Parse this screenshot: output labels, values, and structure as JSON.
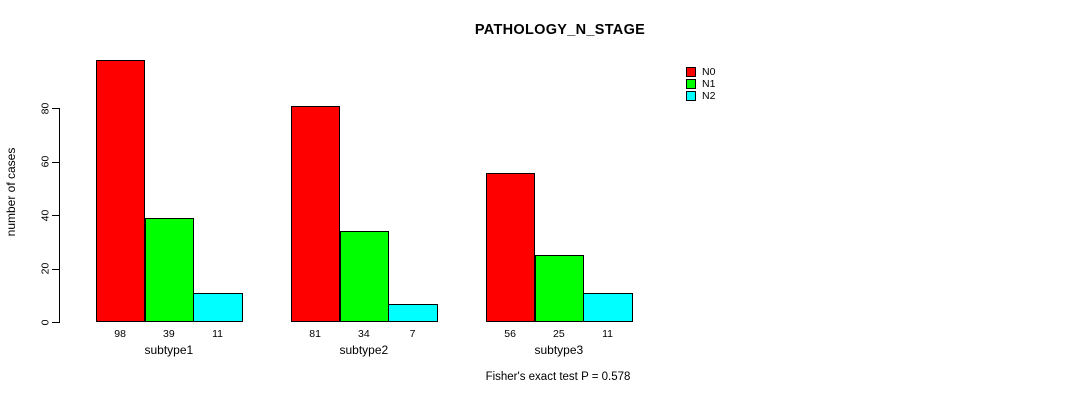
{
  "chart_data": {
    "type": "bar",
    "title": "PATHOLOGY_N_STAGE",
    "categories": [
      "subtype1",
      "subtype2",
      "subtype3"
    ],
    "series": [
      {
        "name": "N0",
        "color": "#ff0000",
        "values": [
          98,
          81,
          56
        ]
      },
      {
        "name": "N1",
        "color": "#00ff00",
        "values": [
          39,
          34,
          25
        ]
      },
      {
        "name": "N2",
        "color": "#00ffff",
        "values": [
          11,
          7,
          11
        ]
      }
    ],
    "xlabel": "",
    "ylabel": "number of cases",
    "yticks": [
      0,
      20,
      40,
      60,
      80
    ],
    "ylim": [
      0,
      98
    ],
    "bar_value_labels": true,
    "grid": false,
    "legend_position": "top-right",
    "legend_entries": [
      "N0",
      "N1",
      "N2"
    ],
    "annotation": "Fisher's exact test P = 0.578"
  }
}
